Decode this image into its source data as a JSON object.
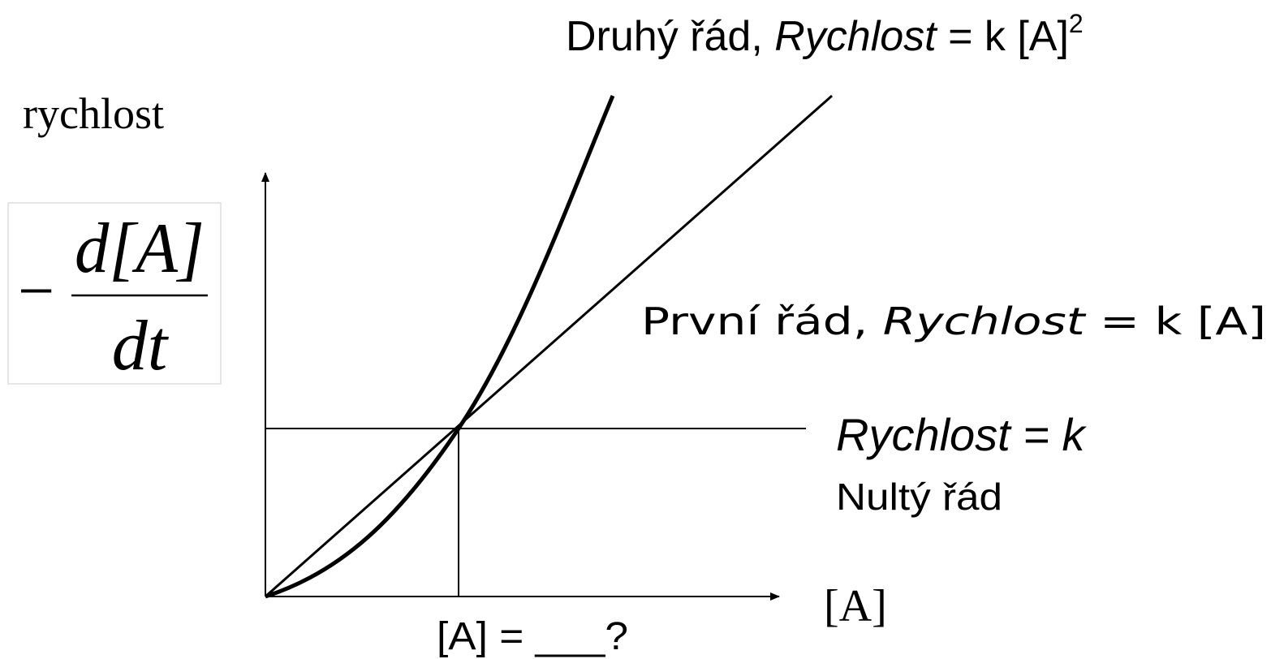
{
  "second_order": {
    "prefix": "Druhý řád, ",
    "rate": "Rychlost",
    "equation": " = k [A]",
    "exponent": "2"
  },
  "y_axis_label": "rychlost",
  "formula": {
    "minus": "−",
    "numerator": "d[A]",
    "denominator": "dt"
  },
  "first_order": {
    "prefix": "První řád, ",
    "rate": "Rychlost",
    "equation": " = k [A]"
  },
  "zero_order": {
    "equation": "Rychlost = k",
    "name": "Nultý řád"
  },
  "x_axis_label": "[A]",
  "question": "[A] = ___?"
}
